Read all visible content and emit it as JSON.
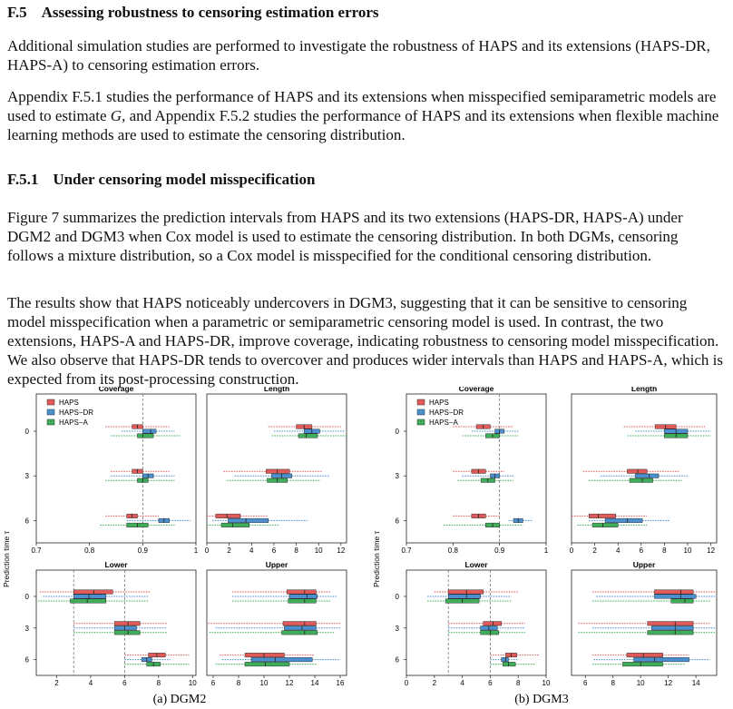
{
  "section": {
    "number": "F.5",
    "title": "Assessing robustness to censoring estimation errors"
  },
  "paragraph1": "Additional simulation studies are performed to investigate the robustness of HAPS and its extensions (HAPS-DR, HAPS-A) to censoring estimation errors.",
  "paragraph2_a": "Appendix F.5.1 studies the performance of HAPS and its extensions when misspecified semiparametric models are used to estimate ",
  "paragraph2_var": "G",
  "paragraph2_b": ", and Appendix F.5.2 studies the performance of HAPS and its extensions when flexible machine learning methods are used to estimate the censoring distribution.",
  "subsection": {
    "number": "F.5.1",
    "title": "Under censoring model misspecification"
  },
  "paragraph3": "Figure 7 summarizes the prediction intervals from HAPS and its two extensions (HAPS-DR, HAPS-A) under DGM2 and DGM3 when Cox model is used to estimate the censoring distribution. In both DGMs, censoring follows a mixture distribution, so a Cox model is misspecified for the conditional censoring distribution.",
  "paragraph4": "The results show that HAPS noticeably undercovers in DGM3, suggesting that it can be sensitive to censoring model misspecification when a parametric or semiparametric censoring model is used. In contrast, the two extensions, HAPS-A and HAPS-DR, improve coverage, indicating robustness to censoring model misspecification. We also observe that HAPS-DR tends to overcover and produces wider intervals than HAPS and HAPS-A, which is expected from its post-processing construction.",
  "colors": {
    "HAPS": "#e05a5a",
    "HAPS-DR": "#4a8fd0",
    "HAPS-A": "#3fae5a"
  },
  "chart_data": [
    {
      "type": "boxplot",
      "caption": "(a) DGM2",
      "ylabel": "Prediction time τ",
      "legend": [
        "HAPS",
        "HAPS−DR",
        "HAPS−A"
      ],
      "legend_position": "top-left of Coverage panel",
      "panels": [
        {
          "title": "Coverage",
          "xlim": [
            0.7,
            1.0
          ],
          "ticks": [
            "0.7",
            "0.8",
            "0.9",
            "1"
          ],
          "ref": [
            0.9
          ],
          "y_categories": [
            "0",
            "3",
            "6"
          ],
          "groups": [
            [
              [
                0.83,
                0.88,
                0.89,
                0.9,
                0.95
              ],
              [
                0.86,
                0.9,
                0.915,
                0.925,
                0.96
              ],
              [
                0.84,
                0.89,
                0.9,
                0.92,
                0.97
              ]
            ],
            [
              [
                0.84,
                0.88,
                0.89,
                0.9,
                0.95
              ],
              [
                0.84,
                0.9,
                0.91,
                0.92,
                0.96
              ],
              [
                0.83,
                0.89,
                0.9,
                0.91,
                0.96
              ]
            ],
            [
              [
                0.83,
                0.87,
                0.88,
                0.89,
                0.93
              ],
              [
                0.87,
                0.93,
                0.94,
                0.95,
                0.99
              ],
              [
                0.82,
                0.87,
                0.89,
                0.91,
                0.96
              ]
            ]
          ]
        },
        {
          "title": "Length",
          "xlim": [
            0,
            12.5
          ],
          "ticks": [
            "0",
            "2",
            "4",
            "6",
            "8",
            "10",
            "12"
          ],
          "ref": [],
          "y_categories": [
            "0",
            "3",
            "6"
          ],
          "groups": [
            [
              [
                5.5,
                8.0,
                8.7,
                9.4,
                12.0
              ],
              [
                6.0,
                8.7,
                9.4,
                10.1,
                12.3
              ],
              [
                5.8,
                8.2,
                8.9,
                9.9,
                12.5
              ]
            ],
            [
              [
                1.5,
                5.3,
                6.3,
                7.4,
                10.3
              ],
              [
                2.5,
                5.8,
                6.7,
                7.6,
                11.0
              ],
              [
                1.8,
                5.4,
                6.3,
                7.2,
                10.2
              ]
            ],
            [
              [
                0.0,
                0.8,
                1.8,
                3.0,
                5.5
              ],
              [
                0.5,
                1.9,
                3.5,
                5.5,
                9.0
              ],
              [
                0.0,
                1.3,
                2.3,
                3.8,
                6.5
              ]
            ]
          ]
        },
        {
          "title": "Lower",
          "xlim": [
            0.8,
            10.2
          ],
          "ticks": [
            "2",
            "4",
            "6",
            "8",
            "10"
          ],
          "ref": [
            3,
            6
          ],
          "y_categories": [
            "0",
            "3",
            "6"
          ],
          "groups": [
            [
              [
                1.0,
                3.0,
                4.2,
                5.3,
                7.5
              ],
              [
                1.2,
                3.0,
                3.9,
                4.9,
                7.4
              ],
              [
                0.9,
                2.8,
                3.8,
                4.9,
                7.4
              ]
            ],
            [
              [
                3.0,
                5.4,
                6.2,
                6.9,
                8.5
              ],
              [
                3.0,
                5.4,
                6.0,
                6.7,
                8.5
              ],
              [
                3.0,
                5.4,
                6.2,
                6.9,
                8.5
              ]
            ],
            [
              [
                6.0,
                7.4,
                7.9,
                8.4,
                9.8
              ],
              [
                6.0,
                7.0,
                7.3,
                7.6,
                8.7
              ],
              [
                6.0,
                7.3,
                7.7,
                8.1,
                9.8
              ]
            ]
          ]
        },
        {
          "title": "Upper",
          "xlim": [
            5.5,
            16.5
          ],
          "ticks": [
            "6",
            "8",
            "10",
            "12",
            "14",
            "16"
          ],
          "ref": [],
          "y_categories": [
            "0",
            "3",
            "6"
          ],
          "groups": [
            [
              [
                7.5,
                11.8,
                13.2,
                14.1,
                15.3
              ],
              [
                7.5,
                12.0,
                13.4,
                14.2,
                15.7
              ],
              [
                7.5,
                11.9,
                13.2,
                14.1,
                15.3
              ]
            ],
            [
              [
                5.6,
                11.5,
                13.2,
                14.1,
                16.1
              ],
              [
                6.2,
                11.6,
                13.0,
                14.1,
                16.0
              ],
              [
                5.7,
                11.4,
                13.2,
                14.2,
                15.6
              ]
            ],
            [
              [
                6.5,
                8.5,
                10.0,
                11.6,
                14.0
              ],
              [
                6.7,
                9.0,
                10.9,
                13.8,
                16.0
              ],
              [
                6.2,
                8.5,
                10.1,
                12.0,
                14.2
              ]
            ]
          ]
        }
      ]
    },
    {
      "type": "boxplot",
      "caption": "(b) DGM3",
      "ylabel": "Prediction time τ",
      "legend": [
        "HAPS",
        "HAPS−DR",
        "HAPS−A"
      ],
      "legend_position": "top-left of Coverage panel",
      "panels": [
        {
          "title": "Coverage",
          "xlim": [
            0.7,
            1.0
          ],
          "ticks": [
            "0.7",
            "0.8",
            "0.9",
            "1"
          ],
          "ref": [
            0.9
          ],
          "y_categories": [
            "0",
            "3",
            "6"
          ],
          "groups": [
            [
              [
                0.8,
                0.85,
                0.865,
                0.88,
                0.93
              ],
              [
                0.84,
                0.89,
                0.9,
                0.91,
                0.94
              ],
              [
                0.82,
                0.87,
                0.885,
                0.9,
                0.94
              ]
            ],
            [
              [
                0.8,
                0.84,
                0.855,
                0.87,
                0.91
              ],
              [
                0.82,
                0.88,
                0.89,
                0.9,
                0.93
              ],
              [
                0.81,
                0.86,
                0.875,
                0.89,
                0.93
              ]
            ],
            [
              [
                0.8,
                0.84,
                0.855,
                0.87,
                0.9
              ],
              [
                0.92,
                0.93,
                0.94,
                0.95,
                0.97
              ],
              [
                0.78,
                0.87,
                0.885,
                0.9,
                0.95
              ]
            ]
          ]
        },
        {
          "title": "Length",
          "xlim": [
            0,
            12.5
          ],
          "ticks": [
            "0",
            "2",
            "4",
            "6",
            "8",
            "10",
            "12"
          ],
          "ref": [],
          "y_categories": [
            "0",
            "3",
            "6"
          ],
          "groups": [
            [
              [
                4.5,
                7.2,
                8.1,
                9.0,
                11.5
              ],
              [
                5.5,
                8.0,
                9.0,
                10.0,
                12.0
              ],
              [
                4.8,
                8.0,
                9.0,
                10.0,
                12.0
              ]
            ],
            [
              [
                1.0,
                4.8,
                5.7,
                6.5,
                9.3
              ],
              [
                2.5,
                5.5,
                6.7,
                7.5,
                10.0
              ],
              [
                1.5,
                5.0,
                6.1,
                7.0,
                9.5
              ]
            ],
            [
              [
                0.0,
                1.5,
                2.3,
                3.8,
                6.5
              ],
              [
                1.5,
                2.9,
                4.8,
                6.1,
                8.5
              ],
              [
                0.5,
                1.8,
                2.7,
                4.0,
                6.5
              ]
            ]
          ]
        },
        {
          "title": "Lower",
          "xlim": [
            0,
            10
          ],
          "ticks": [
            "0",
            "2",
            "4",
            "6",
            "8",
            "10"
          ],
          "ref": [
            3,
            6
          ],
          "y_categories": [
            "0",
            "3",
            "6"
          ],
          "groups": [
            [
              [
                2.0,
                3.0,
                4.3,
                5.5,
                8.0
              ],
              [
                1.5,
                3.0,
                4.3,
                5.3,
                7.5
              ],
              [
                1.5,
                2.8,
                4.0,
                5.2,
                7.5
              ]
            ],
            [
              [
                3.0,
                5.5,
                6.2,
                6.8,
                8.5
              ],
              [
                3.0,
                5.3,
                5.9,
                6.5,
                8.5
              ],
              [
                3.0,
                5.3,
                6.0,
                6.6,
                8.5
              ]
            ],
            [
              [
                6.0,
                7.1,
                7.5,
                7.9,
                9.5
              ],
              [
                6.0,
                6.8,
                7.1,
                7.3,
                8.0
              ],
              [
                6.0,
                6.9,
                7.3,
                7.8,
                9.2
              ]
            ]
          ]
        },
        {
          "title": "Upper",
          "xlim": [
            5,
            15.5
          ],
          "ticks": [
            "6",
            "8",
            "10",
            "12",
            "14"
          ],
          "ref": [],
          "y_categories": [
            "0",
            "3",
            "6"
          ],
          "groups": [
            [
              [
                6.5,
                11.0,
                12.9,
                13.8,
                15.5
              ],
              [
                6.8,
                11.0,
                12.9,
                14.0,
                15.5
              ],
              [
                6.5,
                12.2,
                13.2,
                13.8,
                15.0
              ]
            ],
            [
              [
                5.5,
                10.5,
                12.5,
                13.8,
                15.0
              ],
              [
                6.5,
                10.8,
                12.5,
                13.8,
                15.5
              ],
              [
                5.5,
                10.5,
                12.5,
                13.8,
                15.5
              ]
            ],
            [
              [
                6.5,
                9.0,
                10.2,
                11.6,
                13.5
              ],
              [
                6.6,
                9.5,
                11.0,
                13.5,
                15.0
              ],
              [
                6.5,
                8.7,
                10.0,
                11.6,
                13.2
              ]
            ]
          ]
        }
      ]
    }
  ]
}
